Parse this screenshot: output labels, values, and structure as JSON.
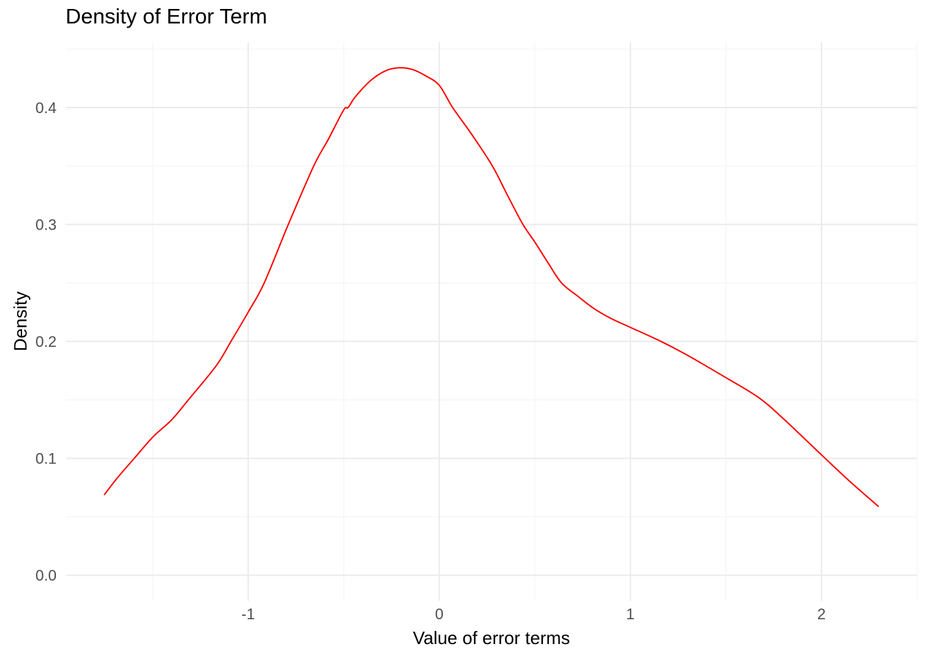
{
  "chart_data": {
    "type": "line",
    "subtype": "kernel-density-curve",
    "title": "Density of Error Term",
    "xlabel": "Value of error terms",
    "ylabel": "Density",
    "xlim": [
      -1.954,
      2.5
    ],
    "ylim": [
      -0.022,
      0.456
    ],
    "x_ticks": [
      {
        "value": -1,
        "label": "-1"
      },
      {
        "value": 0,
        "label": "0"
      },
      {
        "value": 1,
        "label": "1"
      },
      {
        "value": 2,
        "label": "2"
      }
    ],
    "y_ticks": [
      {
        "value": 0.0,
        "label": "0.0"
      },
      {
        "value": 0.1,
        "label": "0.1"
      },
      {
        "value": 0.2,
        "label": "0.2"
      },
      {
        "value": 0.3,
        "label": "0.3"
      },
      {
        "value": 0.4,
        "label": "0.4"
      }
    ],
    "x_minor_breaks": [
      -1.5,
      -0.5,
      0.5,
      1.5,
      2.5
    ],
    "y_minor_breaks": [
      0.05,
      0.15,
      0.25,
      0.35,
      0.45
    ],
    "grid": true,
    "legend": "none",
    "colors": {
      "background": "#FFFFFF",
      "grid_major": "#EBEBEB",
      "grid_minor": "#F2F2F2",
      "axis_text": "#4D4D4D",
      "title_text": "#000000",
      "curve": "#FF0000"
    },
    "series": [
      {
        "name": "density-of-error-term",
        "color": "#FF0000",
        "points": [
          [
            -1.752,
            0.069
          ],
          [
            -1.686,
            0.083
          ],
          [
            -1.596,
            0.1
          ],
          [
            -1.5,
            0.118
          ],
          [
            -1.4,
            0.133
          ],
          [
            -1.313,
            0.15
          ],
          [
            -1.168,
            0.179
          ],
          [
            -1.09,
            0.2
          ],
          [
            -1.0,
            0.225
          ],
          [
            -0.916,
            0.25
          ],
          [
            -0.79,
            0.3
          ],
          [
            -0.657,
            0.35
          ],
          [
            -0.58,
            0.373
          ],
          [
            -0.5,
            0.398
          ],
          [
            -0.477,
            0.4
          ],
          [
            -0.44,
            0.409
          ],
          [
            -0.36,
            0.423
          ],
          [
            -0.28,
            0.4315
          ],
          [
            -0.21,
            0.434
          ],
          [
            -0.14,
            0.4325
          ],
          [
            -0.07,
            0.427
          ],
          [
            0.0,
            0.419
          ],
          [
            0.07,
            0.4
          ],
          [
            0.17,
            0.377
          ],
          [
            0.278,
            0.35
          ],
          [
            0.36,
            0.324
          ],
          [
            0.438,
            0.3
          ],
          [
            0.5,
            0.285
          ],
          [
            0.57,
            0.267
          ],
          [
            0.64,
            0.25
          ],
          [
            0.73,
            0.238
          ],
          [
            0.81,
            0.228
          ],
          [
            0.9,
            0.2195
          ],
          [
            1.0,
            0.212
          ],
          [
            1.16,
            0.2
          ],
          [
            1.3,
            0.188
          ],
          [
            1.5,
            0.169
          ],
          [
            1.671,
            0.152
          ],
          [
            1.8,
            0.134
          ],
          [
            2.0,
            0.103
          ],
          [
            2.15,
            0.08
          ],
          [
            2.297,
            0.059
          ]
        ]
      }
    ]
  }
}
